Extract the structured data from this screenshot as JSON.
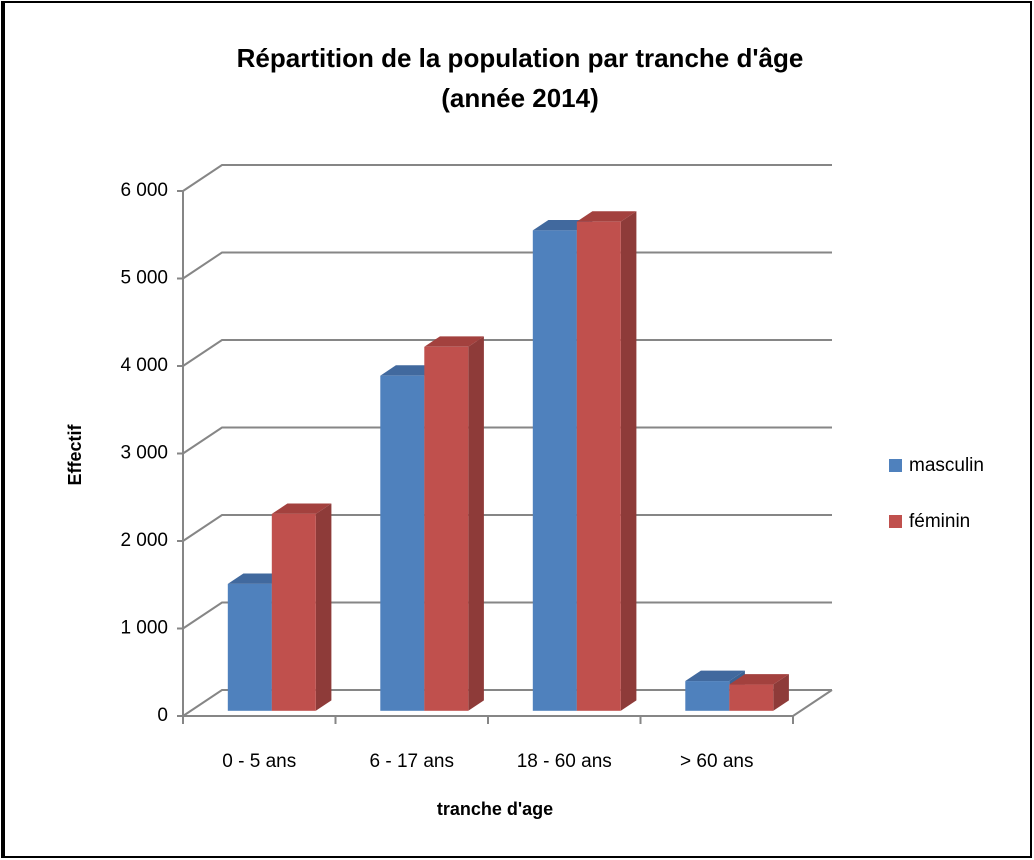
{
  "chart_data": {
    "type": "bar3d",
    "title": [
      "Répartition de la population par tranche d'âge",
      "(année 2014)"
    ],
    "x_label": "tranche d'age",
    "y_label": "Effectif",
    "categories": [
      "0 - 5 ans",
      "6 - 17 ans",
      "18 - 60 ans",
      "> 60 ans"
    ],
    "series": [
      {
        "name": "masculin",
        "color": "#4f81bd",
        "side": "#3a6293",
        "top": "#41699e",
        "values": [
          1450,
          3830,
          5490,
          340
        ]
      },
      {
        "name": "féminin",
        "color": "#c0504d",
        "side": "#8e3b39",
        "top": "#a3413e",
        "values": [
          2250,
          4160,
          5590,
          300
        ]
      }
    ],
    "ylim": [
      0,
      6000
    ],
    "yticks": [
      0,
      {
        "value": 1000,
        "label": "1 000"
      },
      {
        "value": 2000,
        "label": "2 000"
      },
      {
        "value": 3000,
        "label": "3 000"
      },
      {
        "value": 4000,
        "label": "4 000"
      },
      {
        "value": 5000,
        "label": "5 000"
      },
      {
        "value": 6000,
        "label": "6 000"
      }
    ],
    "grid": true,
    "legend": "right"
  }
}
